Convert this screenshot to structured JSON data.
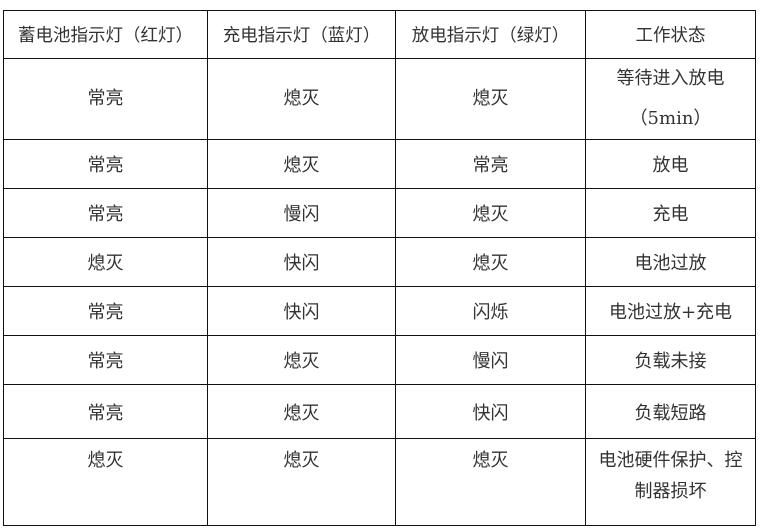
{
  "table": {
    "headers": [
      "蓄电池指示灯（红灯）",
      "充电指示灯（蓝灯）",
      "放电指示灯（绿灯）",
      "工作状态"
    ],
    "rows": [
      [
        "常亮",
        "熄灭",
        "熄灭",
        "等待进入放电（5min）"
      ],
      [
        "常亮",
        "熄灭",
        "常亮",
        "放电"
      ],
      [
        "常亮",
        "慢闪",
        "熄灭",
        "充电"
      ],
      [
        "熄灭",
        "快闪",
        "熄灭",
        "电池过放"
      ],
      [
        "常亮",
        "快闪",
        "闪烁",
        "电池过放+充电"
      ],
      [
        "常亮",
        "熄灭",
        "慢闪",
        "负载未接"
      ],
      [
        "常亮",
        "熄灭",
        "快闪",
        "负载短路"
      ],
      [
        "熄灭",
        "熄灭",
        "熄灭",
        "电池硬件保护、控制器损坏"
      ]
    ]
  }
}
